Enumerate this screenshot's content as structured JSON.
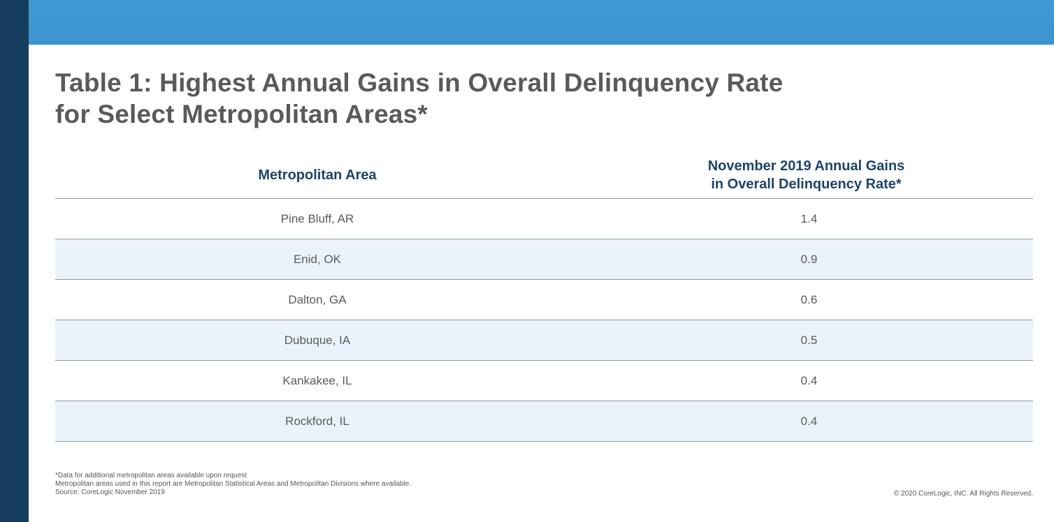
{
  "title": {
    "line1": "Table 1: Highest Annual Gains in Overall Delinquency Rate",
    "line2": "for Select Metropolitan Areas*"
  },
  "table": {
    "headers": {
      "area": "Metropolitan Area",
      "gain_line1": "November 2019 Annual Gains",
      "gain_line2": "in Overall Delinquency Rate*"
    },
    "rows": [
      {
        "area": "Pine Bluff, AR",
        "value": "1.4"
      },
      {
        "area": "Enid, OK",
        "value": "0.9"
      },
      {
        "area": "Dalton, GA",
        "value": "0.6"
      },
      {
        "area": "Dubuque, IA",
        "value": "0.5"
      },
      {
        "area": "Kankakee, IL",
        "value": "0.4"
      },
      {
        "area": "Rockford, IL",
        "value": "0.4"
      }
    ]
  },
  "footnotes": {
    "line1": "*Data for additional metropolitan areas available upon request",
    "line2": "Metropolitan areas used in this report are Metropolitan Statistical Areas and Metropolitan Divisions where available.",
    "line3": "Source: CoreLogic November 2019"
  },
  "copyright": "© 2020 CoreLogic, INC. All Rights Reserved.",
  "colors": {
    "left_bar": "#143d5e",
    "top_band": "#3e97d1",
    "header_text": "#1e4468",
    "alt_row": "#eaf3fb"
  }
}
